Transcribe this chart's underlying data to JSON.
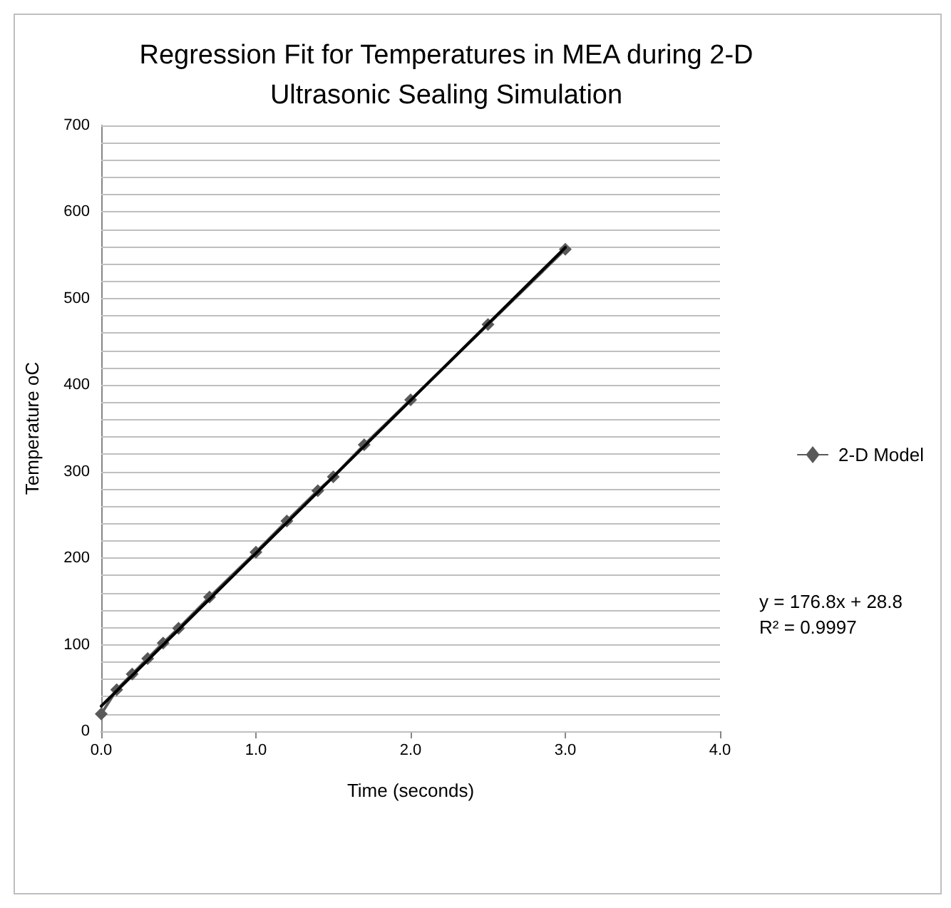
{
  "chart_data": {
    "type": "line",
    "title": "Regression Fit for Temperatures in MEA during 2-D\nUltrasonic Sealing Simulation",
    "xlabel": "Time (seconds)",
    "ylabel": "Temperature oC",
    "xlim": [
      0,
      4
    ],
    "xticks": [
      {
        "value": 0,
        "label": "0.0"
      },
      {
        "value": 1,
        "label": "1.0"
      },
      {
        "value": 2,
        "label": "2.0"
      },
      {
        "value": 3,
        "label": "3.0"
      },
      {
        "value": 4,
        "label": "4.0"
      }
    ],
    "ylim": [
      0,
      700
    ],
    "yticks": [
      0,
      {
        "value": 20,
        "label": null
      },
      {
        "value": 40,
        "label": null
      },
      {
        "value": 60,
        "label": null
      },
      {
        "value": 80,
        "label": null
      },
      100,
      {
        "value": 120,
        "label": null
      },
      {
        "value": 140,
        "label": null
      },
      {
        "value": 160,
        "label": null
      },
      {
        "value": 180,
        "label": null
      },
      200,
      {
        "value": 220,
        "label": null
      },
      {
        "value": 240,
        "label": null
      },
      {
        "value": 260,
        "label": null
      },
      {
        "value": 280,
        "label": null
      },
      300,
      {
        "value": 320,
        "label": null
      },
      {
        "value": 340,
        "label": null
      },
      {
        "value": 360,
        "label": null
      },
      {
        "value": 380,
        "label": null
      },
      400,
      {
        "value": 420,
        "label": null
      },
      {
        "value": 440,
        "label": null
      },
      {
        "value": 460,
        "label": null
      },
      {
        "value": 480,
        "label": null
      },
      500,
      {
        "value": 520,
        "label": null
      },
      {
        "value": 540,
        "label": null
      },
      {
        "value": 560,
        "label": null
      },
      {
        "value": 580,
        "label": null
      },
      600,
      {
        "value": 620,
        "label": null
      },
      {
        "value": 640,
        "label": null
      },
      {
        "value": 660,
        "label": null
      },
      {
        "value": 680,
        "label": null
      },
      700
    ],
    "grid": "y",
    "legend": "right",
    "marker": "diamond",
    "line_style": "solid",
    "annotations": [
      "y = 176.8x + 28.8\nR² = 0.9997"
    ],
    "series": [
      {
        "name": "2-D Model",
        "color": "#595959",
        "x": [
          0,
          0.1,
          0.2,
          0.3,
          0.4,
          0.5,
          0.7,
          1.0,
          1.2,
          1.4,
          1.5,
          1.7,
          2.0,
          2.5,
          3.0
        ],
        "values": [
          20,
          48,
          66,
          84,
          102,
          119,
          155,
          207,
          243,
          278,
          294,
          331,
          383,
          470,
          557
        ]
      },
      {
        "type": "line",
        "color": "#000000",
        "marker": "none",
        "x": [
          0,
          3
        ],
        "values": [
          29,
          559
        ]
      }
    ]
  }
}
